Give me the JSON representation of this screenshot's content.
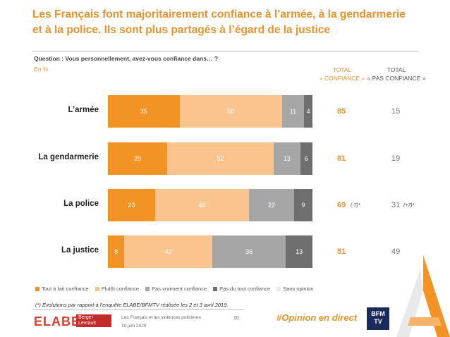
{
  "title": "Les Français font majoritairement confiance à l’armée, à la gendarmerie et à la police. Ils sont plus partagés à l’égard de la justice",
  "question": "Question : Vous personnellement, avez-vous confiance dans… ?",
  "unit": "En %",
  "headers": {
    "total_confiance": [
      "TOTAL",
      "« CONFIANCE »"
    ],
    "total_pas_confiance": [
      "TOTAL",
      "« PAS CONFIANCE »"
    ]
  },
  "colors": {
    "tout_a_fait": "#f39324",
    "plutot": "#f9c48d",
    "pas_vraiment": "#a6a6a6",
    "pas_du_tout": "#6e6e6e",
    "sans_opinion": "#e8e8e8"
  },
  "chart_data": {
    "type": "bar",
    "orientation": "horizontal-stacked-100",
    "categories": [
      "L’armée",
      "La gendarmerie",
      "La police",
      "La justice"
    ],
    "series": [
      {
        "name": "Tout à fait confiance",
        "values": [
          35,
          29,
          23,
          8
        ]
      },
      {
        "name": "Plutôt confiance",
        "values": [
          50,
          52,
          46,
          43
        ]
      },
      {
        "name": "Pas vraiment confiance",
        "values": [
          11,
          13,
          22,
          36
        ]
      },
      {
        "name": "Pas du tout confiance",
        "values": [
          4,
          6,
          9,
          13
        ]
      },
      {
        "name": "Sans opinion",
        "values": [
          0,
          0,
          0,
          0
        ]
      }
    ],
    "total_confiance": [
      "85",
      "81",
      "69",
      "51"
    ],
    "total_pas_confiance": [
      "15",
      "19",
      "31",
      "49"
    ],
    "evolutions_confiance": [
      "",
      "",
      "(-7)*",
      ""
    ],
    "evolutions_pas_confiance": [
      "",
      "",
      "(+7)*",
      ""
    ],
    "legend_position": "bottom"
  },
  "footnote": "(*) Evolutions par rapport à l’enquête ELABE/BFMTV réalisée les 2 et 3 avril 2019.",
  "footer": {
    "brand": "ELABE",
    "partner": "Berger Levrault",
    "study_title": "Les Français et les violences policières",
    "date": "10 juin 2020",
    "page": "10",
    "hashtag": "#Opinion en direct",
    "tv_logo": "BFM TV"
  }
}
